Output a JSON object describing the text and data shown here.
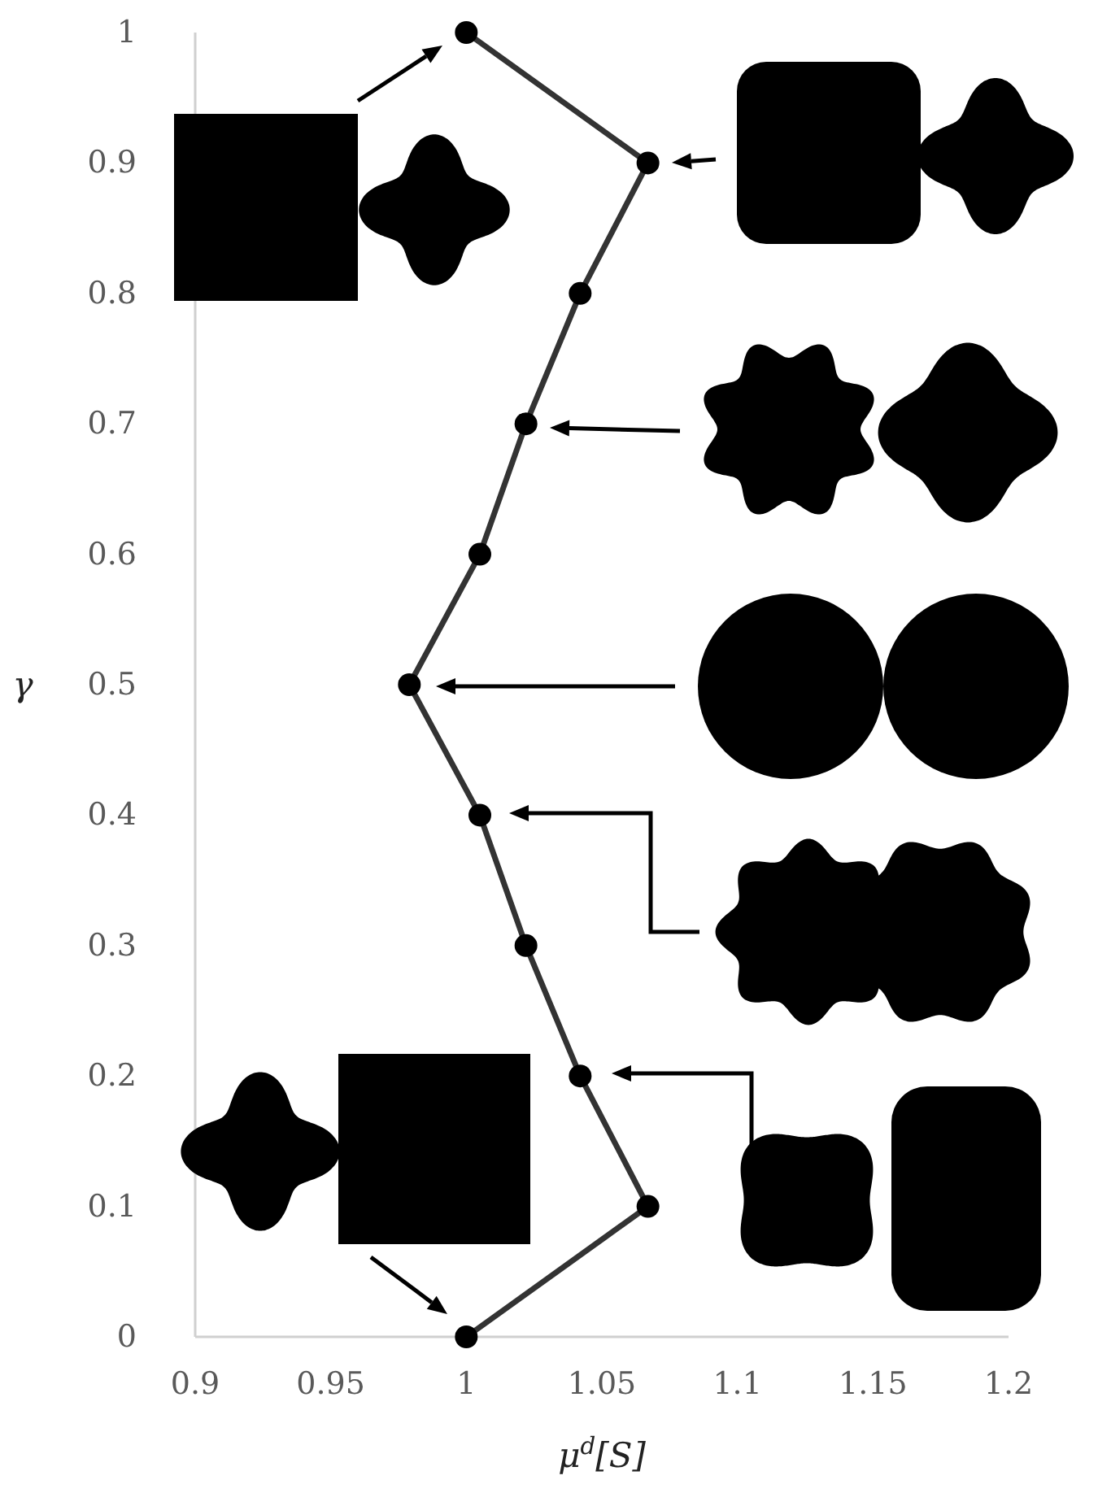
{
  "chart_data": {
    "type": "line",
    "xlabel": "μ$^{d}$[S]",
    "ylabel": "γ",
    "xlim": [
      0.9,
      1.2
    ],
    "xticks": [
      0.9,
      0.95,
      1,
      1.05,
      1.1,
      1.15,
      1.2
    ],
    "ylim": [
      0,
      1
    ],
    "yticks": [
      0,
      0.1,
      0.2,
      0.3,
      0.4,
      0.5,
      0.6,
      0.7,
      0.8,
      0.9,
      1
    ],
    "marker": "circle",
    "line_style": "solid",
    "series": [
      {
        "color": "#333333",
        "x": [
          1.0,
          1.067,
          1.042,
          1.022,
          1.005,
          0.979,
          1.005,
          1.022,
          1.042,
          1.067,
          1.0
        ],
        "values": [
          0,
          0.1,
          0.2,
          0.3,
          0.4,
          0.5,
          0.6,
          0.7,
          0.8,
          0.9,
          1
        ]
      }
    ]
  }
}
